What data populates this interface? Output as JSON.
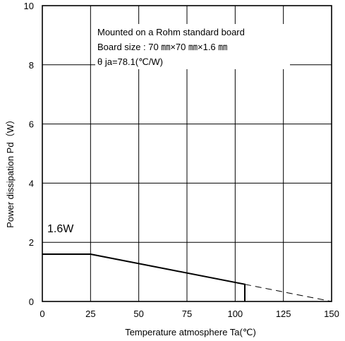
{
  "chart_data": {
    "type": "line",
    "title": "",
    "xlabel": "Temperature atmosphere Ta(℃)",
    "ylabel": "Power dissipation Pd（W）",
    "xlim": [
      0,
      150
    ],
    "ylim": [
      0,
      10
    ],
    "x_ticks": [
      0,
      25,
      50,
      75,
      100,
      125,
      150
    ],
    "y_ticks": [
      0,
      2,
      4,
      6,
      8,
      10
    ],
    "x_tick_labels": [
      "0",
      "25",
      "50",
      "75",
      "100",
      "125",
      "150"
    ],
    "y_tick_labels": [
      "0",
      "2",
      "4",
      "6",
      "8",
      "10"
    ],
    "grid": true,
    "series": [
      {
        "style": "solid",
        "x": [
          0,
          25,
          105,
          105
        ],
        "y": [
          1.6,
          1.6,
          0.58,
          0
        ]
      },
      {
        "style": "dashed",
        "x": [
          105,
          150
        ],
        "y": [
          0.58,
          0
        ]
      }
    ],
    "annotations": {
      "notes": [
        "Mounted on a Rohm standard board",
        "Board size : 70 ㎜×70 ㎜×1.6 ㎜",
        "θ ja=78.1(℃/W)"
      ],
      "callout": "1.6W"
    }
  }
}
